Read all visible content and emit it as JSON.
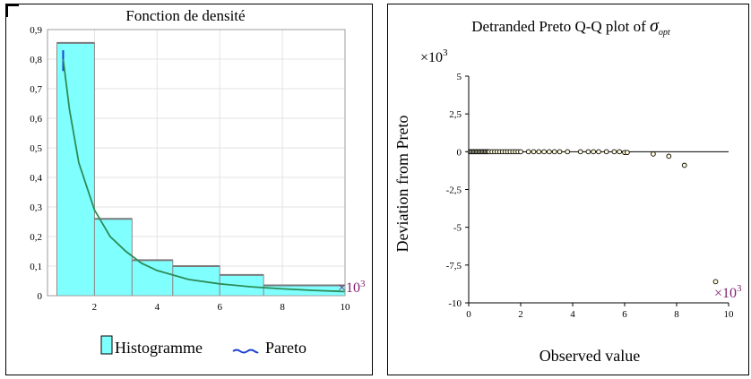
{
  "chart_data": [
    {
      "type": "bar",
      "title": "Fonction de densité",
      "x_multiplier_label": "×10",
      "x_multiplier_exp": "3",
      "xlim": [
        0.5,
        10
      ],
      "ylim": [
        0,
        0.9
      ],
      "x_ticks": [
        2,
        4,
        6,
        8,
        10
      ],
      "y_ticks": [
        0,
        0.1,
        0.2,
        0.3,
        0.4,
        0.5,
        0.6,
        0.7,
        0.8,
        0.9
      ],
      "y_tick_labels": [
        "0",
        "0,1",
        "0,2",
        "0,3",
        "0,4",
        "0,5",
        "0,6",
        "0,7",
        "0,8",
        "0,9"
      ],
      "grid": true,
      "legend_position": "bottom",
      "colors": {
        "histogram": "#80ffff",
        "pareto": "#2e8b57",
        "pareto_legend": "#1c3fd6"
      },
      "bins": [
        {
          "x0": 0.8,
          "x1": 2.0,
          "value": 0.855
        },
        {
          "x0": 2.0,
          "x1": 3.2,
          "value": 0.26
        },
        {
          "x0": 3.2,
          "x1": 4.5,
          "value": 0.12
        },
        {
          "x0": 4.5,
          "x1": 6.0,
          "value": 0.1
        },
        {
          "x0": 6.0,
          "x1": 7.4,
          "value": 0.07
        },
        {
          "x0": 7.4,
          "x1": 10.0,
          "value": 0.035
        }
      ],
      "series": [
        {
          "name": "Histogramme"
        },
        {
          "name": "Pareto",
          "x": [
            1.0,
            1.2,
            1.5,
            2.0,
            2.5,
            3.0,
            3.5,
            4.0,
            5.0,
            6.0,
            7.0,
            8.0,
            9.0,
            10.0
          ],
          "values": [
            0.8,
            0.63,
            0.45,
            0.29,
            0.2,
            0.15,
            0.11,
            0.085,
            0.055,
            0.04,
            0.03,
            0.023,
            0.018,
            0.014
          ]
        }
      ]
    },
    {
      "type": "scatter",
      "title": "Detranded Preto Q-Q plot of ",
      "title_symbol": "σ",
      "title_subscript": "opt",
      "xlabel": "Observed value",
      "ylabel": "Deviation from Preto",
      "y_multiplier_label": "×10",
      "y_multiplier_exp": "3",
      "x_multiplier_label": "×10",
      "x_multiplier_exp": "3",
      "xlim": [
        0,
        10
      ],
      "ylim": [
        -10,
        5
      ],
      "x_ticks": [
        0,
        2,
        4,
        6,
        8,
        10
      ],
      "y_ticks": [
        5,
        2.5,
        0,
        -2.5,
        -5,
        -7.5,
        -10
      ],
      "y_tick_labels": [
        "5",
        "2,5",
        "0",
        "-2,5",
        "-5",
        "-7,5",
        "-10"
      ],
      "reference_line_y": 0,
      "points": {
        "x": [
          0.05,
          0.1,
          0.15,
          0.2,
          0.25,
          0.3,
          0.35,
          0.4,
          0.45,
          0.5,
          0.55,
          0.6,
          0.65,
          0.7,
          0.75,
          0.8,
          0.9,
          1.0,
          1.1,
          1.2,
          1.3,
          1.4,
          1.5,
          1.6,
          1.7,
          1.8,
          1.9,
          2.0,
          2.3,
          2.5,
          2.7,
          2.9,
          3.1,
          3.3,
          3.5,
          3.8,
          4.3,
          4.6,
          4.8,
          5.0,
          5.3,
          5.6,
          5.8,
          6.0,
          6.1,
          7.1,
          7.7,
          8.3,
          9.5
        ],
        "y": [
          0,
          0,
          0,
          0,
          0,
          0,
          0,
          0,
          0,
          0,
          0,
          0,
          0,
          0,
          0,
          0,
          0,
          0,
          0,
          0,
          0,
          0,
          0,
          0,
          0,
          0,
          0,
          0,
          0,
          0,
          0,
          0,
          0,
          0,
          0,
          0,
          0,
          0,
          0,
          0,
          0,
          0,
          0,
          -0.05,
          -0.05,
          -0.15,
          -0.3,
          -0.9,
          -8.6
        ]
      }
    }
  ]
}
